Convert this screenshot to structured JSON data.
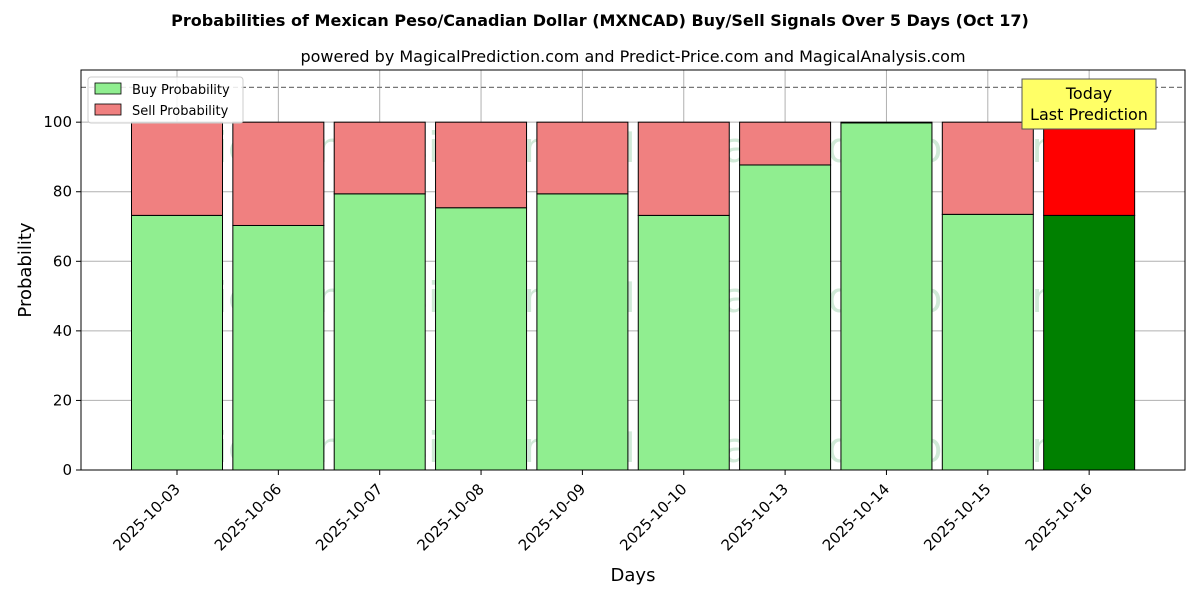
{
  "chart_data": {
    "type": "bar",
    "stacked": true,
    "title": "Probabilities of Mexican Peso/Canadian Dollar (MXNCAD) Buy/Sell Signals Over 5 Days (Oct 17)",
    "subtitle": "powered by MagicalPrediction.com and Predict-Price.com and MagicalAnalysis.com",
    "xlabel": "Days",
    "ylabel": "Probability",
    "ylim": [
      0,
      115
    ],
    "yticks": [
      0,
      20,
      40,
      60,
      80,
      100
    ],
    "grid": true,
    "legend_position": "top-left",
    "reference_line": 110,
    "categories": [
      "2025-10-03",
      "2025-10-06",
      "2025-10-07",
      "2025-10-08",
      "2025-10-09",
      "2025-10-10",
      "2025-10-13",
      "2025-10-14",
      "2025-10-15",
      "2025-10-16"
    ],
    "series": [
      {
        "name": "Buy Probability",
        "values": [
          73.2,
          70.3,
          79.4,
          75.4,
          79.4,
          73.2,
          87.7,
          99.8,
          73.5,
          73.2
        ]
      },
      {
        "name": "Sell Probability",
        "values": [
          26.8,
          29.7,
          20.6,
          24.6,
          20.6,
          26.8,
          12.3,
          0.2,
          26.5,
          26.8
        ]
      }
    ],
    "annotation": {
      "line1": "Today",
      "line2": "Last Prediction"
    },
    "colors": {
      "buy": "#90ee90",
      "sell": "#f08080",
      "buy_highlight": "#008000",
      "sell_highlight": "#ff0000",
      "annotation_bg": "#ffff66"
    },
    "watermarks": [
      "MagicalAnalysis.com",
      "MagicalPrediction.com"
    ]
  }
}
